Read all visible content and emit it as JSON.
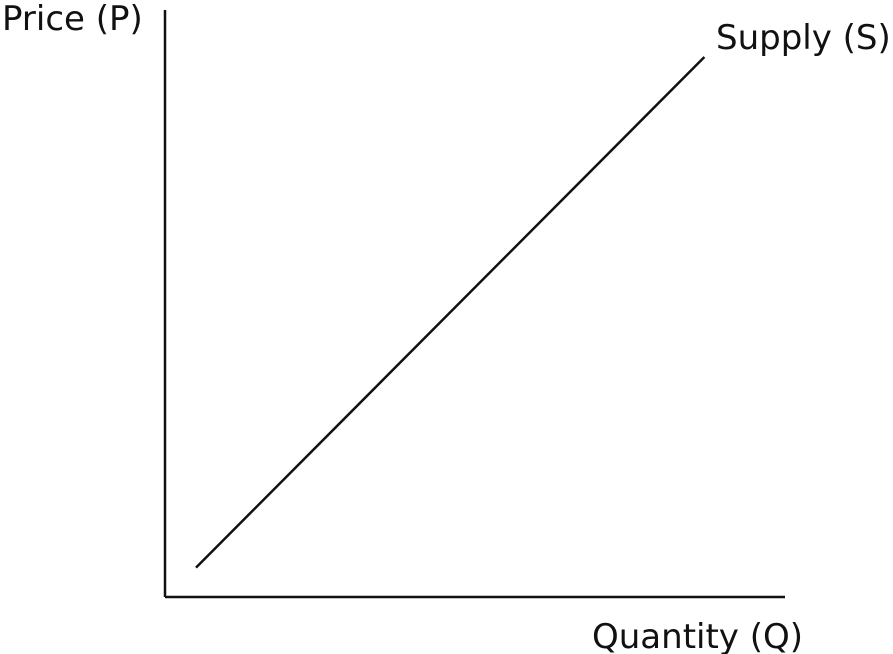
{
  "chart_data": {
    "type": "line",
    "title": "",
    "xlabel": "Quantity (Q)",
    "ylabel": "Price (P)",
    "grid": false,
    "ticks": false,
    "xlim": [
      0,
      100
    ],
    "ylim": [
      0,
      100
    ],
    "series": [
      {
        "name": "Supply (S)",
        "x": [
          5,
          87
        ],
        "y": [
          5,
          92
        ]
      }
    ],
    "colors": {
      "axis": "#111111",
      "line": "#111111"
    }
  }
}
